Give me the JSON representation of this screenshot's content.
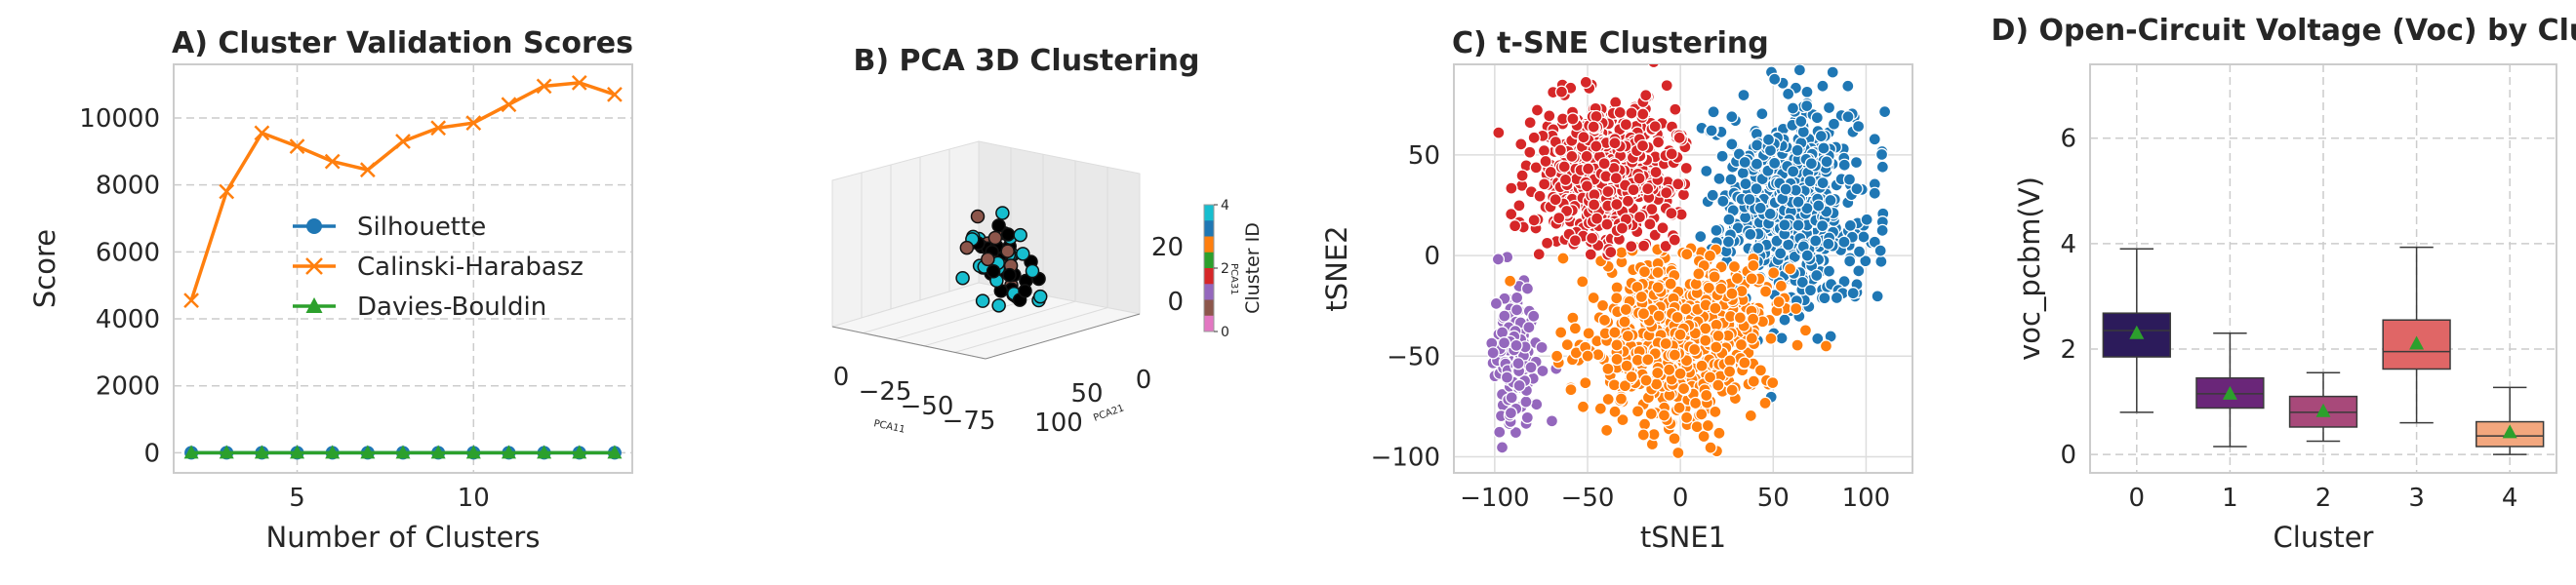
{
  "chart_data": [
    {
      "panel": "A",
      "type": "line",
      "title": "A) Cluster Validation Scores",
      "xlabel": "Number of Clusters",
      "ylabel": "Score",
      "xlim": [
        1.5,
        14.5
      ],
      "ylim": [
        -600,
        11600
      ],
      "xticks": [
        5,
        10
      ],
      "yticks": [
        0,
        2000,
        4000,
        6000,
        8000,
        10000
      ],
      "grid": true,
      "legend": "center",
      "x": [
        2,
        3,
        4,
        5,
        6,
        7,
        8,
        9,
        10,
        11,
        12,
        13,
        14
      ],
      "series": [
        {
          "name": "Silhouette",
          "color": "#1f77b4",
          "marker": "circle",
          "values": [
            0.39,
            0.35,
            0.36,
            0.34,
            0.33,
            0.32,
            0.31,
            0.3,
            0.3,
            0.29,
            0.29,
            0.28,
            0.28
          ]
        },
        {
          "name": "Calinski-Harabasz",
          "color": "#ff7f0e",
          "marker": "x",
          "values": [
            4550,
            7800,
            9550,
            9150,
            8700,
            8450,
            9300,
            9700,
            9850,
            10400,
            10950,
            11050,
            10700
          ]
        },
        {
          "name": "Davies-Bouldin",
          "color": "#2ca02c",
          "marker": "triangle",
          "values": [
            1.0,
            1.0,
            0.95,
            0.95,
            1.0,
            1.0,
            1.0,
            1.0,
            1.0,
            1.0,
            1.0,
            1.0,
            1.0
          ]
        }
      ]
    },
    {
      "panel": "B",
      "type": "scatter",
      "title": "B) PCA 3D Clustering",
      "xlabel": "PCA11",
      "ylabel": "PCA21",
      "zlabel": "PCA31",
      "xticks": [
        0,
        -25,
        -50,
        -75
      ],
      "xtick_labels": [
        "0",
        "−25",
        "−50",
        "−75"
      ],
      "yticks": [
        50,
        100,
        0
      ],
      "zticks": [
        20,
        0
      ],
      "colorbar_label": "Cluster ID",
      "colorbar_ticks": [
        0,
        2,
        4
      ],
      "colorbar_colors": [
        "#e377c2",
        "#8c564b",
        "#9467bd",
        "#d62728",
        "#2ca02c",
        "#ff7f0e",
        "#1f77b4",
        "#17becf"
      ]
    },
    {
      "panel": "C",
      "type": "scatter",
      "title": "C) t-SNE Clustering",
      "xlabel": "tSNE1",
      "ylabel": "tSNE2",
      "xlim": [
        -122,
        125
      ],
      "ylim": [
        -108,
        95
      ],
      "xticks": [
        -100,
        -50,
        0,
        50,
        100
      ],
      "xtick_labels": [
        "−100",
        "−50",
        "0",
        "50",
        "100"
      ],
      "yticks": [
        -100,
        -50,
        0,
        50
      ],
      "ytick_labels": [
        "−100",
        "−50",
        "0",
        "50"
      ],
      "grid": true,
      "clusters": [
        {
          "cluster": 0,
          "color": "#1f77b4",
          "center": [
            60,
            25
          ],
          "spread": [
            35,
            45
          ]
        },
        {
          "cluster": 1,
          "color": "#ff7f0e",
          "center": [
            0,
            -40
          ],
          "spread": [
            45,
            40
          ]
        },
        {
          "cluster": 2,
          "color": "#9467bd",
          "center": [
            -90,
            -50
          ],
          "spread": [
            12,
            30
          ]
        },
        {
          "cluster": 3,
          "color": "#d62728",
          "center": [
            -40,
            40
          ],
          "spread": [
            35,
            30
          ]
        }
      ]
    },
    {
      "panel": "D",
      "type": "box",
      "title": "D) Open-Circuit Voltage (Voc) by Cluster",
      "xlabel": "Cluster",
      "ylabel": "voc_pcbm(V)",
      "ylim": [
        -0.35,
        7.4
      ],
      "yticks": [
        0,
        2,
        4,
        6
      ],
      "grid": true,
      "categories": [
        "0",
        "1",
        "2",
        "3",
        "4"
      ],
      "boxes": [
        {
          "min": 0.8,
          "q1": 1.85,
          "median": 2.35,
          "q3": 2.68,
          "max": 3.9,
          "mean": 2.3,
          "color": "#2c1b5b"
        },
        {
          "min": 0.15,
          "q1": 0.88,
          "median": 1.15,
          "q3": 1.45,
          "max": 2.3,
          "mean": 1.15,
          "color": "#6a2679"
        },
        {
          "min": 0.25,
          "q1": 0.52,
          "median": 0.8,
          "q3": 1.1,
          "max": 1.55,
          "mean": 0.82,
          "color": "#a8497a"
        },
        {
          "min": 0.6,
          "q1": 1.62,
          "median": 1.95,
          "q3": 2.55,
          "max": 3.93,
          "mean": 2.1,
          "color": "#e06666"
        },
        {
          "min": 0.0,
          "q1": 0.15,
          "median": 0.35,
          "q3": 0.62,
          "max": 1.27,
          "mean": 0.42,
          "color": "#f3a77e"
        }
      ],
      "mean_marker_color": "#2ca02c"
    }
  ]
}
